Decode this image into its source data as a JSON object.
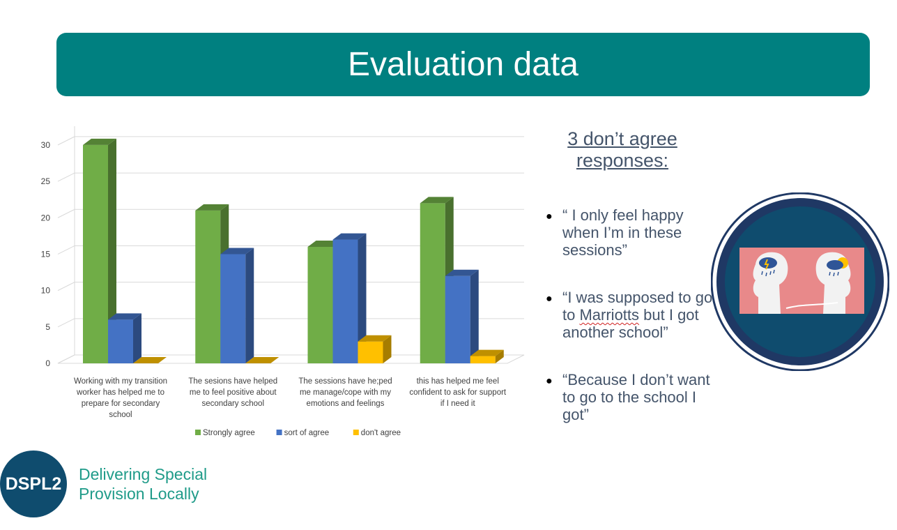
{
  "header": {
    "title": "Evaluation data"
  },
  "chart_data": {
    "type": "bar",
    "categories": [
      [
        "Working with my transition",
        "worker has helped me to",
        "prepare for secondary",
        "school"
      ],
      [
        "The sesions have helped",
        "me to feel positive about",
        "secondary school"
      ],
      [
        "The sessions have he;ped",
        "me manage/cope with my",
        "emotions and feelings"
      ],
      [
        "this has helped me feel",
        "confident to ask for support",
        "if I need it"
      ]
    ],
    "series": [
      {
        "name": "Strongly agree",
        "values": [
          30,
          21,
          16,
          22
        ],
        "color": "#70ad47"
      },
      {
        "name": "sort of agree",
        "values": [
          6,
          15,
          17,
          12
        ],
        "color": "#4472c4"
      },
      {
        "name": "don't agree",
        "values": [
          0,
          0,
          3,
          1
        ],
        "color": "#ffc000"
      }
    ],
    "yticks": [
      "0",
      "5",
      "10",
      "15",
      "20",
      "25",
      "30"
    ],
    "ylim": [
      0,
      32
    ],
    "grid": true,
    "legend": "bottom",
    "style": "3d-clustered-column"
  },
  "side": {
    "heading_line1": "3 don’t agree",
    "heading_line2": "responses:",
    "quotes": [
      "“ I only feel happy when I’m in these sessions”",
      "“I was supposed to go to ",
      "“Because I don’t want to go to the school I got”"
    ],
    "quote2_word": "Marriotts",
    "quote2_rest": " but I got another school”"
  },
  "image": {
    "icon": "two-heads-rain-sun-illustration"
  },
  "logo": {
    "badge": "DSPL2",
    "line1": "Delivering Special",
    "line2": "Provision Locally"
  }
}
